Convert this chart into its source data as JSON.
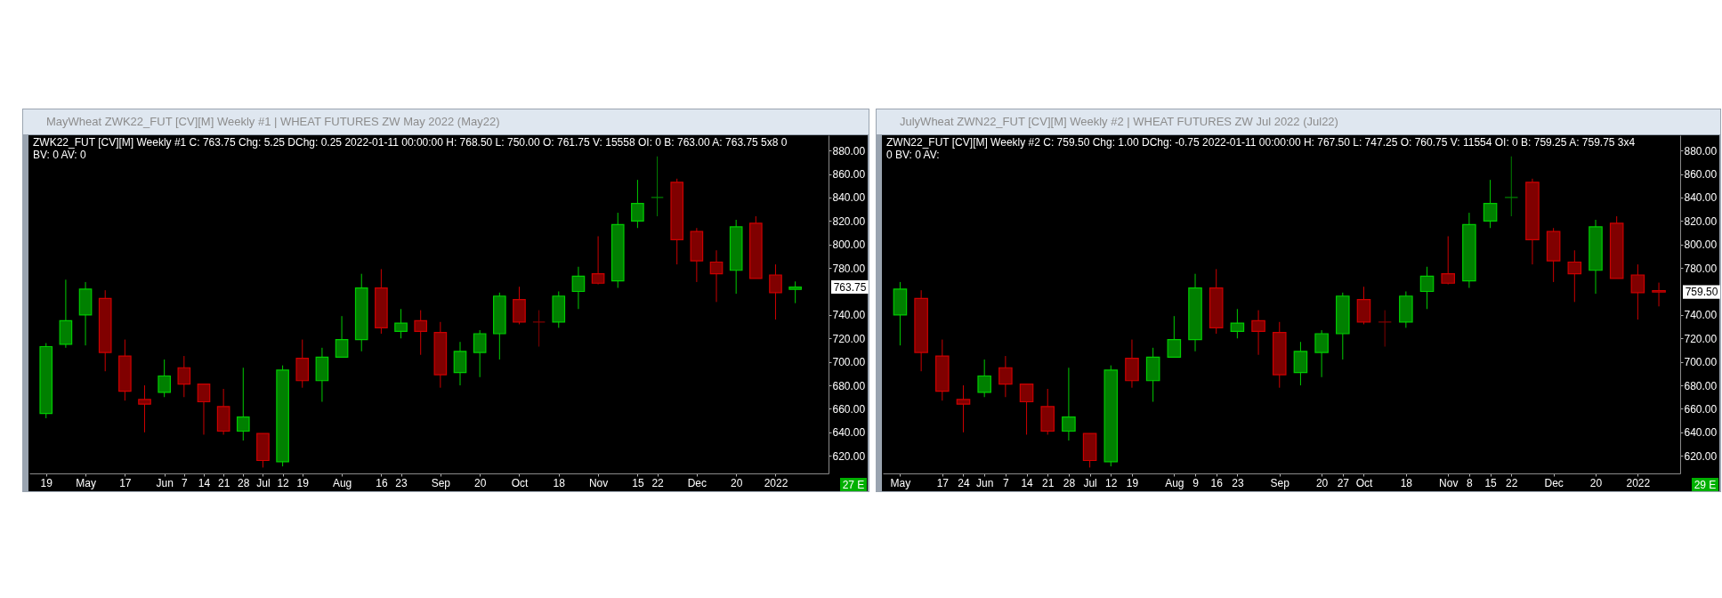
{
  "chart_data": [
    {
      "type": "candlestick",
      "title": "MayWheat ZWK22_FUT [CV][M] Weekly #1 | WHEAT FUTURES ZW May 2022 (May22)",
      "subtitle": "ZWK22_FUT [CV][M] Weekly #1 C: 763.75 Chg: 5.25 DChg: 0.25 2022-01-11 00:00:00 H: 768.50 L: 750.00 O: 761.75 V: 15558 OI: 0 B: 763.00 A: 763.75 5x8 0 BV: 0 AV: 0",
      "categories": [
        "19",
        null,
        "May",
        null,
        "17",
        null,
        "Jun",
        "7",
        "14",
        "21",
        "28",
        "Jul",
        "12",
        "19",
        null,
        "Aug",
        null,
        "16",
        "23",
        null,
        "Sep",
        null,
        "20",
        null,
        "Oct",
        null,
        "18",
        null,
        "Nov",
        null,
        "15",
        "22",
        null,
        "Dec",
        null,
        "20",
        null,
        "2022",
        null
      ],
      "ohlc": [
        [
          656,
          716,
          652,
          713
        ],
        [
          715,
          770,
          712,
          735
        ],
        [
          740,
          768,
          714,
          762
        ],
        [
          754,
          761,
          692,
          708
        ],
        [
          705,
          719,
          667,
          675
        ],
        [
          668,
          680,
          640,
          664
        ],
        [
          674,
          702,
          670,
          688
        ],
        [
          695,
          705,
          670,
          681
        ],
        [
          681,
          681,
          638,
          666
        ],
        [
          662,
          677,
          638,
          641
        ],
        [
          641,
          695,
          633,
          653
        ],
        [
          639,
          639,
          610,
          616
        ],
        [
          615,
          697,
          611,
          693
        ],
        [
          703,
          719,
          678,
          684
        ],
        [
          684,
          712,
          666,
          704
        ],
        [
          704,
          739,
          704,
          719
        ],
        [
          719,
          775,
          709,
          763
        ],
        [
          763,
          779,
          724,
          729
        ],
        [
          726,
          745,
          720,
          733
        ],
        [
          735,
          744,
          706,
          726
        ],
        [
          725,
          734,
          678,
          689
        ],
        [
          691,
          717,
          680,
          709
        ],
        [
          708,
          727,
          687,
          724
        ],
        [
          724,
          759,
          702,
          756
        ],
        [
          753,
          764,
          732,
          734
        ],
        [
          734,
          744,
          713,
          734
        ],
        [
          734,
          760,
          729,
          756
        ],
        [
          760,
          781,
          745,
          773
        ],
        [
          775,
          807,
          766,
          767
        ],
        [
          769,
          827,
          763,
          817
        ],
        [
          820,
          855,
          814,
          835
        ],
        [
          840,
          875,
          824,
          840
        ],
        [
          853,
          856,
          783,
          804
        ],
        [
          811,
          814,
          768,
          786
        ],
        [
          785,
          795,
          751,
          775
        ],
        [
          778,
          821,
          758,
          815
        ],
        [
          818,
          824,
          771,
          771
        ],
        [
          774,
          783,
          736,
          759
        ],
        [
          761.75,
          768.5,
          750,
          763.75
        ]
      ],
      "colors": [
        "#008000",
        "#008000",
        "#008000",
        "#800000",
        "#800000",
        "#800000",
        "#008000",
        "#800000",
        "#800000",
        "#800000",
        "#008000",
        "#800000",
        "#008000",
        "#800000",
        "#008000",
        "#008000",
        "#008000",
        "#800000",
        "#008000",
        "#800000",
        "#800000",
        "#008000",
        "#008000",
        "#008000",
        "#800000",
        "#800000",
        "#008000",
        "#008000",
        "#800000",
        "#008000",
        "#008000",
        "#008000",
        "#800000",
        "#800000",
        "#800000",
        "#008000",
        "#800000",
        "#800000",
        "#008000"
      ],
      "ylim": [
        605,
        893
      ],
      "yticks": [
        {
          "value": 620,
          "label": "620.00"
        },
        {
          "value": 640,
          "label": "640.00"
        },
        {
          "value": 660,
          "label": "660.00"
        },
        {
          "value": 680,
          "label": "680.00"
        },
        {
          "value": 700,
          "label": "700.00"
        },
        {
          "value": 720,
          "label": "720.00"
        },
        {
          "value": 740,
          "label": "740.00"
        },
        {
          "value": 780,
          "label": "780.00"
        },
        {
          "value": 800,
          "label": "800.00"
        },
        {
          "value": 820,
          "label": "820.00"
        },
        {
          "value": 840,
          "label": "840.00"
        },
        {
          "value": 860,
          "label": "860.00"
        },
        {
          "value": 880,
          "label": "880.00"
        }
      ],
      "annotations": [
        "763.75",
        "27 E"
      ]
    },
    {
      "type": "candlestick",
      "title": "JulyWheat ZWN22_FUT [CV][M] Weekly #2 | WHEAT FUTURES ZW Jul 2022 (Jul22)",
      "subtitle": "ZWN22_FUT [CV][M] Weekly #2 C: 759.50 Chg: 1.00 DChg: -0.75 2022-01-11 00:00:00 H: 767.50 L: 747.25 O: 760.75 V: 11554 OI: 0 B: 759.25 A: 759.75 3x4 0 BV: 0 AV:",
      "categories": [
        "May",
        null,
        "17",
        "24",
        "Jun",
        "7",
        "14",
        "21",
        "28",
        "Jul",
        "12",
        "19",
        null,
        "Aug",
        "9",
        "16",
        "23",
        null,
        "Sep",
        null,
        "20",
        "27",
        "Oct",
        null,
        "18",
        null,
        "Nov",
        "8",
        "15",
        "22",
        null,
        "Dec",
        null,
        "20",
        null,
        "2022",
        null
      ],
      "ohlc": [
        [
          740,
          768,
          714,
          762
        ],
        [
          754,
          761,
          692,
          708
        ],
        [
          705,
          719,
          667,
          675
        ],
        [
          668,
          680,
          640,
          664
        ],
        [
          674,
          702,
          670,
          688
        ],
        [
          695,
          705,
          670,
          681
        ],
        [
          681,
          681,
          638,
          666
        ],
        [
          662,
          677,
          638,
          641
        ],
        [
          641,
          695,
          633,
          653
        ],
        [
          639,
          639,
          610,
          616
        ],
        [
          615,
          697,
          611,
          693
        ],
        [
          703,
          719,
          678,
          684
        ],
        [
          684,
          712,
          666,
          704
        ],
        [
          704,
          739,
          704,
          719
        ],
        [
          719,
          775,
          709,
          763
        ],
        [
          763,
          779,
          724,
          729
        ],
        [
          726,
          745,
          720,
          733
        ],
        [
          735,
          744,
          706,
          726
        ],
        [
          725,
          734,
          678,
          689
        ],
        [
          691,
          717,
          680,
          709
        ],
        [
          708,
          727,
          687,
          724
        ],
        [
          724,
          759,
          702,
          756
        ],
        [
          753,
          764,
          732,
          734
        ],
        [
          734,
          744,
          713,
          734
        ],
        [
          734,
          760,
          729,
          756
        ],
        [
          760,
          781,
          745,
          773
        ],
        [
          775,
          807,
          766,
          767
        ],
        [
          769,
          827,
          763,
          817
        ],
        [
          820,
          855,
          814,
          835
        ],
        [
          840,
          875,
          824,
          840
        ],
        [
          853,
          856,
          783,
          804
        ],
        [
          811,
          814,
          768,
          786
        ],
        [
          785,
          795,
          751,
          775
        ],
        [
          778,
          821,
          758,
          815
        ],
        [
          818,
          824,
          771,
          771
        ],
        [
          774,
          783,
          736,
          759
        ],
        [
          760.75,
          767.5,
          747.25,
          759.5
        ]
      ],
      "colors": [
        "#008000",
        "#800000",
        "#800000",
        "#800000",
        "#008000",
        "#800000",
        "#800000",
        "#800000",
        "#008000",
        "#800000",
        "#008000",
        "#800000",
        "#008000",
        "#008000",
        "#008000",
        "#800000",
        "#008000",
        "#800000",
        "#800000",
        "#008000",
        "#008000",
        "#008000",
        "#800000",
        "#800000",
        "#008000",
        "#008000",
        "#800000",
        "#008000",
        "#008000",
        "#008000",
        "#800000",
        "#800000",
        "#800000",
        "#008000",
        "#800000",
        "#800000",
        "#800000"
      ],
      "ylim": [
        605,
        893
      ],
      "yticks": [
        {
          "value": 620,
          "label": "620.00"
        },
        {
          "value": 640,
          "label": "640.00"
        },
        {
          "value": 660,
          "label": "660.00"
        },
        {
          "value": 680,
          "label": "680.00"
        },
        {
          "value": 700,
          "label": "700.00"
        },
        {
          "value": 720,
          "label": "720.00"
        },
        {
          "value": 740,
          "label": "740.00"
        },
        {
          "value": 780,
          "label": "780.00"
        },
        {
          "value": 800,
          "label": "800.00"
        },
        {
          "value": 820,
          "label": "820.00"
        },
        {
          "value": 840,
          "label": "840.00"
        },
        {
          "value": 860,
          "label": "860.00"
        },
        {
          "value": 880,
          "label": "880.00"
        }
      ],
      "annotations": [
        "759.50",
        "29 E"
      ]
    }
  ]
}
